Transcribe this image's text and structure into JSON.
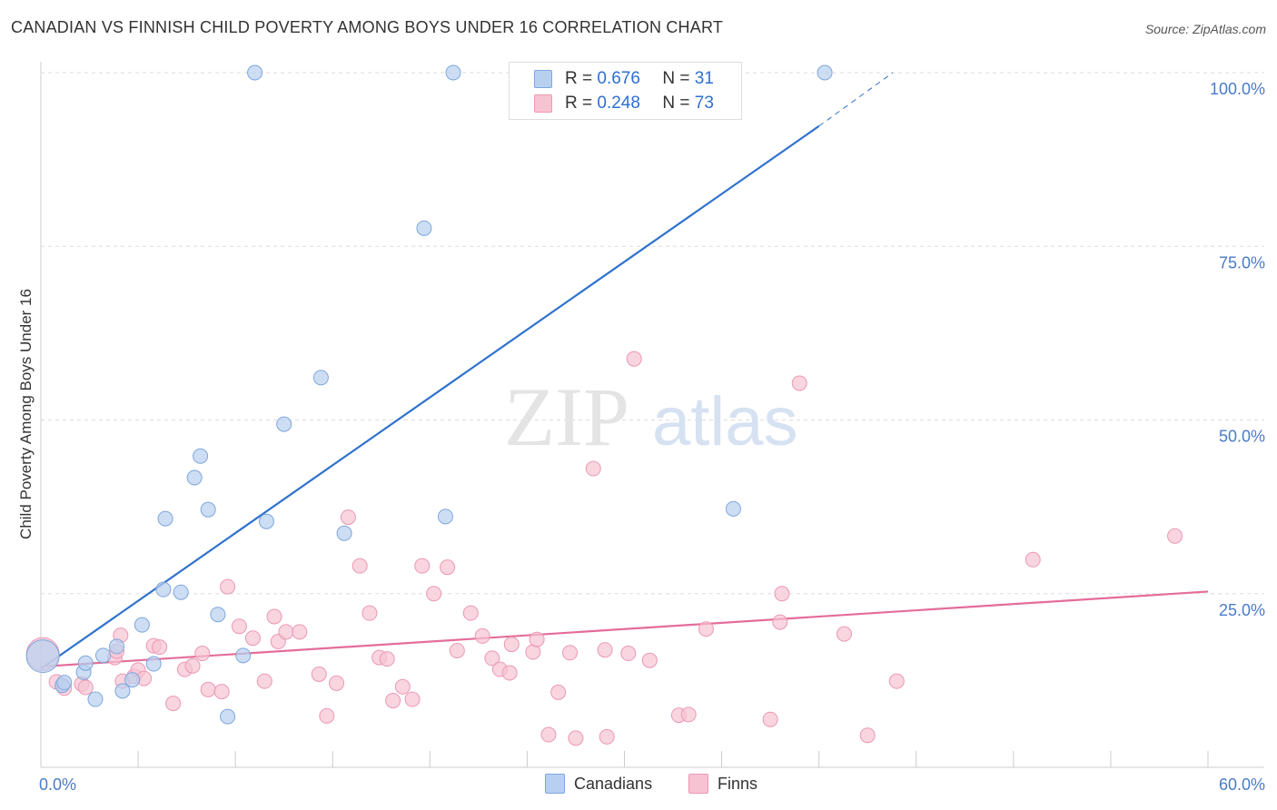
{
  "header": {
    "title": "CANADIAN VS FINNISH CHILD POVERTY AMONG BOYS UNDER 16 CORRELATION CHART",
    "source": "Source: ZipAtlas.com"
  },
  "watermark": {
    "zip": "ZIP",
    "atlas": "atlas"
  },
  "legend": {
    "rows": [
      {
        "r_label": "R =",
        "r_value": "0.676",
        "n_label": "N =",
        "n_value": "31"
      },
      {
        "r_label": "R =",
        "r_value": "0.248",
        "n_label": "N =",
        "n_value": "73"
      }
    ]
  },
  "bottom_legend": {
    "canadians": "Canadians",
    "finns": "Finns"
  },
  "colors": {
    "canadians_fill": "#b8d0f0",
    "canadians_stroke": "#7ea6dc",
    "canadians_line": "#2f72cc",
    "finns_fill": "#f7c3d3",
    "finns_stroke": "#eb98b4",
    "finns_line": "#e46d9a",
    "tick_text": "#4a7bc8",
    "grid": "#dddddd"
  },
  "chart_data": {
    "type": "scatter",
    "title": "CANADIAN VS FINNISH CHILD POVERTY AMONG BOYS UNDER 16 CORRELATION CHART",
    "xlabel": "",
    "ylabel": "Child Poverty Among Boys Under 16",
    "xlim": [
      0,
      60
    ],
    "ylim": [
      0,
      100
    ],
    "x_tick_labels": [
      "0.0%",
      "60.0%"
    ],
    "y_ticks": [
      25,
      50,
      75,
      100
    ],
    "y_tick_labels": [
      "25.0%",
      "50.0%",
      "75.0%",
      "100.0%"
    ],
    "grid": true,
    "series": [
      {
        "name": "Canadians",
        "r": 0.676,
        "n": 31,
        "points": [
          [
            0.1,
            16.0
          ],
          [
            1.1,
            11.8
          ],
          [
            1.2,
            12.2
          ],
          [
            2.2,
            13.7
          ],
          [
            2.3,
            15.0
          ],
          [
            2.8,
            9.8
          ],
          [
            3.2,
            16.1
          ],
          [
            3.9,
            17.4
          ],
          [
            4.2,
            11.0
          ],
          [
            4.7,
            12.6
          ],
          [
            5.2,
            20.5
          ],
          [
            5.8,
            14.9
          ],
          [
            6.3,
            25.6
          ],
          [
            6.4,
            35.8
          ],
          [
            7.2,
            25.2
          ],
          [
            7.9,
            41.7
          ],
          [
            8.2,
            44.8
          ],
          [
            8.6,
            37.1
          ],
          [
            9.1,
            22.0
          ],
          [
            9.6,
            7.3
          ],
          [
            10.4,
            16.1
          ],
          [
            11.0,
            100.0
          ],
          [
            11.6,
            35.4
          ],
          [
            12.5,
            49.4
          ],
          [
            14.4,
            56.1
          ],
          [
            15.6,
            33.7
          ],
          [
            19.7,
            77.6
          ],
          [
            20.8,
            36.1
          ],
          [
            21.2,
            100.0
          ],
          [
            35.6,
            37.2
          ],
          [
            40.3,
            100.0
          ]
        ],
        "trend": {
          "x0": 0.0,
          "y0": 14.2,
          "x1": 40.0,
          "y1": 92.3,
          "dashed_x1": 43.8,
          "dashed_y1": 100.0
        }
      },
      {
        "name": "Finns",
        "r": 0.248,
        "n": 73,
        "points": [
          [
            0.1,
            16.3
          ],
          [
            0.8,
            12.3
          ],
          [
            1.2,
            11.4
          ],
          [
            2.1,
            12.0
          ],
          [
            2.3,
            11.5
          ],
          [
            3.8,
            15.8
          ],
          [
            3.9,
            16.7
          ],
          [
            4.1,
            19.0
          ],
          [
            4.2,
            12.4
          ],
          [
            4.8,
            13.1
          ],
          [
            5.0,
            14.0
          ],
          [
            5.3,
            12.8
          ],
          [
            5.8,
            17.5
          ],
          [
            6.1,
            17.3
          ],
          [
            6.8,
            9.2
          ],
          [
            7.4,
            14.1
          ],
          [
            7.8,
            14.6
          ],
          [
            8.3,
            16.4
          ],
          [
            8.6,
            11.2
          ],
          [
            9.3,
            10.9
          ],
          [
            9.6,
            26.0
          ],
          [
            10.2,
            20.3
          ],
          [
            10.9,
            18.6
          ],
          [
            11.5,
            12.4
          ],
          [
            12.0,
            21.7
          ],
          [
            12.2,
            18.1
          ],
          [
            12.6,
            19.5
          ],
          [
            13.3,
            19.5
          ],
          [
            14.3,
            13.4
          ],
          [
            14.7,
            7.4
          ],
          [
            15.2,
            12.1
          ],
          [
            15.8,
            36.0
          ],
          [
            16.4,
            29.0
          ],
          [
            16.9,
            22.2
          ],
          [
            17.4,
            15.8
          ],
          [
            17.8,
            15.6
          ],
          [
            18.1,
            9.6
          ],
          [
            18.6,
            11.6
          ],
          [
            19.1,
            9.8
          ],
          [
            19.6,
            29.0
          ],
          [
            20.2,
            25.0
          ],
          [
            20.9,
            28.8
          ],
          [
            21.4,
            16.8
          ],
          [
            22.1,
            22.2
          ],
          [
            22.7,
            18.9
          ],
          [
            23.2,
            15.7
          ],
          [
            23.6,
            14.1
          ],
          [
            24.1,
            13.6
          ],
          [
            24.2,
            17.7
          ],
          [
            25.3,
            16.6
          ],
          [
            25.5,
            18.4
          ],
          [
            26.1,
            4.7
          ],
          [
            26.6,
            10.8
          ],
          [
            27.2,
            16.5
          ],
          [
            27.5,
            4.2
          ],
          [
            28.4,
            43.0
          ],
          [
            29.0,
            16.9
          ],
          [
            29.1,
            4.4
          ],
          [
            30.2,
            16.4
          ],
          [
            31.3,
            15.4
          ],
          [
            32.8,
            7.5
          ],
          [
            33.3,
            7.6
          ],
          [
            30.5,
            58.8
          ],
          [
            34.2,
            19.9
          ],
          [
            37.5,
            6.9
          ],
          [
            38.0,
            20.9
          ],
          [
            38.1,
            25.0
          ],
          [
            39.0,
            55.3
          ],
          [
            41.3,
            19.2
          ],
          [
            42.5,
            4.6
          ],
          [
            44.0,
            12.4
          ],
          [
            51.0,
            29.9
          ],
          [
            58.3,
            33.3
          ]
        ],
        "trend": {
          "x0": 0.0,
          "y0": 14.5,
          "x1": 60.0,
          "y1": 25.3
        }
      }
    ]
  }
}
